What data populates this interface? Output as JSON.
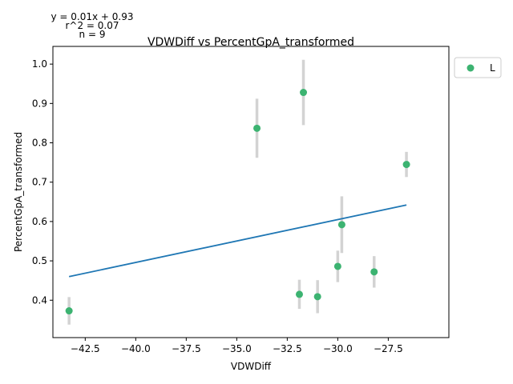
{
  "chart_data": {
    "type": "scatter",
    "title": "VDWDiff vs PercentGpA_transformed",
    "xlabel": "VDWDiff",
    "ylabel": "PercentGpA_transformed",
    "xlim": [
      -44.1,
      -24.5
    ],
    "ylim": [
      0.305,
      1.045
    ],
    "x_ticks": [
      -42.5,
      -40.0,
      -37.5,
      -35.0,
      -32.5,
      -30.0,
      -27.5
    ],
    "x_tick_labels": [
      "−42.5",
      "−40.0",
      "−37.5",
      "−35.0",
      "−32.5",
      "−30.0",
      "−27.5"
    ],
    "y_ticks": [
      0.4,
      0.5,
      0.6,
      0.7,
      0.8,
      0.9,
      1.0
    ],
    "y_tick_labels": [
      "0.4",
      "0.5",
      "0.6",
      "0.7",
      "0.8",
      "0.9",
      "1.0"
    ],
    "grid": false,
    "legend_position": "outside top-right",
    "series": [
      {
        "name": "L",
        "color": "#3cb371",
        "points": [
          {
            "x": -43.3,
            "y": 0.373,
            "err": 0.035
          },
          {
            "x": -34.0,
            "y": 0.837,
            "err": 0.075
          },
          {
            "x": -31.7,
            "y": 0.928,
            "err": 0.083
          },
          {
            "x": -31.9,
            "y": 0.415,
            "err": 0.037
          },
          {
            "x": -31.0,
            "y": 0.409,
            "err": 0.042
          },
          {
            "x": -30.0,
            "y": 0.486,
            "err": 0.04
          },
          {
            "x": -29.8,
            "y": 0.592,
            "err": 0.072
          },
          {
            "x": -28.2,
            "y": 0.472,
            "err": 0.04
          },
          {
            "x": -26.6,
            "y": 0.745,
            "err": 0.032
          }
        ]
      }
    ],
    "fit_line": {
      "x": [
        -43.3,
        -26.6
      ],
      "y": [
        0.46,
        0.642
      ],
      "color": "#1f77b4"
    },
    "errorbar_color": "#d3d3d3",
    "annotations": [
      "y = 0.01x + 0.93",
      "r^2 = 0.07",
      "n = 9"
    ]
  }
}
